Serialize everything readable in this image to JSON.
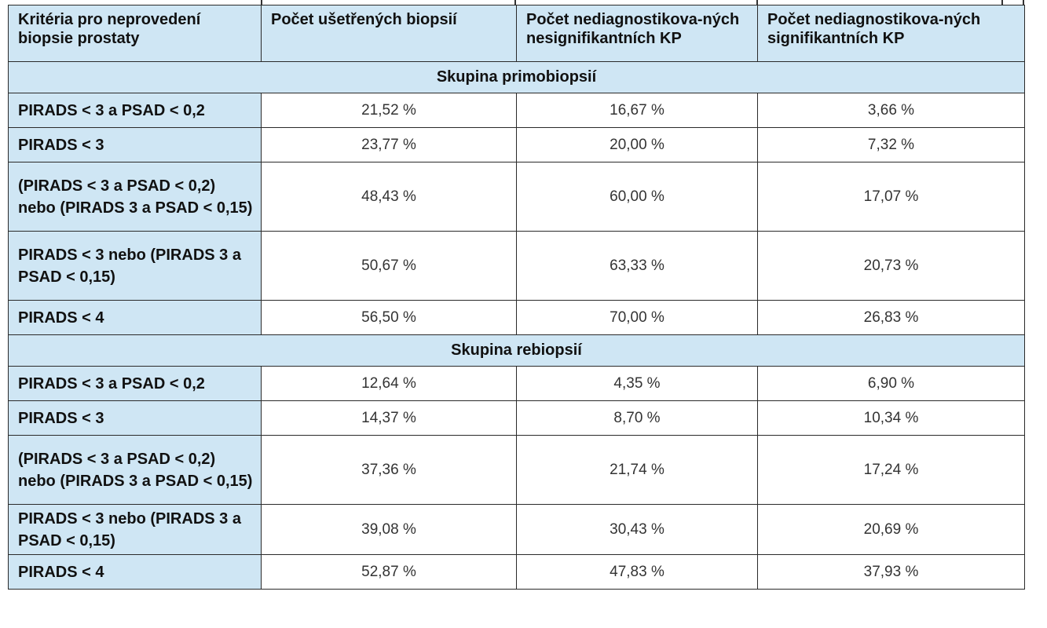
{
  "headers": [
    "Kritéria pro neprovedení biopsie prostaty",
    "Počet ušetřených biopsií",
    "Počet nediagnostikova-ných nesignifikantních KP",
    "Počet nediagnostikova-ných signifikantních KP"
  ],
  "groups": [
    {
      "title": "Skupina primobiopsií",
      "rows": [
        {
          "criteria": "PIRADS < 3 a PSAD < 0,2",
          "saved": "21,52 %",
          "nonsig": "16,67 %",
          "sig": "3,66 %"
        },
        {
          "criteria": "PIRADS < 3",
          "saved": "23,77 %",
          "nonsig": "20,00 %",
          "sig": "7,32 %"
        },
        {
          "criteria": "(PIRADS < 3 a PSAD < 0,2) nebo (PIRADS 3 a PSAD < 0,15)",
          "saved": "48,43 %",
          "nonsig": "60,00 %",
          "sig": "17,07 %"
        },
        {
          "criteria": "PIRADS < 3 nebo (PIRADS 3 a PSAD < 0,15)",
          "saved": "50,67 %",
          "nonsig": "63,33 %",
          "sig": "20,73 %"
        },
        {
          "criteria": "PIRADS < 4",
          "saved": "56,50 %",
          "nonsig": "70,00 %",
          "sig": "26,83 %"
        }
      ]
    },
    {
      "title": "Skupina rebiopsií",
      "rows": [
        {
          "criteria": "PIRADS < 3 a PSAD < 0,2",
          "saved": "12,64 %",
          "nonsig": "4,35 %",
          "sig": "6,90 %"
        },
        {
          "criteria": "PIRADS < 3",
          "saved": "14,37 %",
          "nonsig": "8,70 %",
          "sig": "10,34 %"
        },
        {
          "criteria": "(PIRADS < 3 a PSAD < 0,2) nebo (PIRADS 3 a PSAD < 0,15)",
          "saved": "37,36 %",
          "nonsig": "21,74 %",
          "sig": "17,24 %"
        },
        {
          "criteria": "PIRADS < 3 nebo (PIRADS 3 a PSAD < 0,15)",
          "saved": "39,08 %",
          "nonsig": "30,43 %",
          "sig": "20,69 %"
        },
        {
          "criteria": "PIRADS < 4",
          "saved": "52,87 %",
          "nonsig": "47,83 %",
          "sig": "37,93 %"
        }
      ]
    }
  ]
}
